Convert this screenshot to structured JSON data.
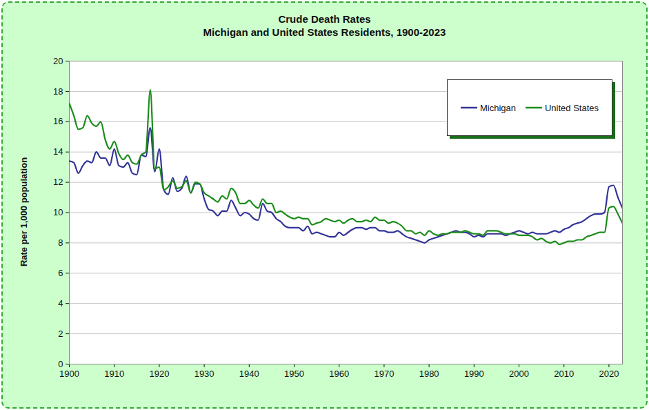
{
  "chart_data": {
    "type": "line",
    "title": "Crude Death Rates",
    "subtitle": "Michigan and United States Residents, 1900-2023",
    "y_label": "Rate per 1,000 population",
    "x": [
      1900,
      1901,
      1902,
      1903,
      1904,
      1905,
      1906,
      1907,
      1908,
      1909,
      1910,
      1911,
      1912,
      1913,
      1914,
      1915,
      1916,
      1917,
      1918,
      1919,
      1920,
      1921,
      1922,
      1923,
      1924,
      1925,
      1926,
      1927,
      1928,
      1929,
      1930,
      1931,
      1932,
      1933,
      1934,
      1935,
      1936,
      1937,
      1938,
      1939,
      1940,
      1941,
      1942,
      1943,
      1944,
      1945,
      1946,
      1947,
      1948,
      1949,
      1950,
      1951,
      1952,
      1953,
      1954,
      1955,
      1956,
      1957,
      1958,
      1959,
      1960,
      1961,
      1962,
      1963,
      1964,
      1965,
      1966,
      1967,
      1968,
      1969,
      1970,
      1971,
      1972,
      1973,
      1974,
      1975,
      1976,
      1977,
      1978,
      1979,
      1980,
      1981,
      1982,
      1983,
      1984,
      1985,
      1986,
      1987,
      1988,
      1989,
      1990,
      1991,
      1992,
      1993,
      1994,
      1995,
      1996,
      1997,
      1998,
      1999,
      2000,
      2001,
      2002,
      2003,
      2004,
      2005,
      2006,
      2007,
      2008,
      2009,
      2010,
      2011,
      2012,
      2013,
      2014,
      2015,
      2016,
      2017,
      2018,
      2019,
      2020,
      2021,
      2022,
      2023
    ],
    "series": [
      {
        "name": "Michigan",
        "color": "#333399",
        "values": [
          13.4,
          13.3,
          12.6,
          13.1,
          13.4,
          13.3,
          14.0,
          13.6,
          13.6,
          13.1,
          14.2,
          13.1,
          13.0,
          13.3,
          12.6,
          12.5,
          13.8,
          13.7,
          15.6,
          12.7,
          14.2,
          11.5,
          11.2,
          12.3,
          11.4,
          11.6,
          12.4,
          11.3,
          11.9,
          11.9,
          10.9,
          10.2,
          10.1,
          9.8,
          10.1,
          10.1,
          10.8,
          10.3,
          9.8,
          10.0,
          9.9,
          9.6,
          9.5,
          10.6,
          10.1,
          10.0,
          9.6,
          9.4,
          9.1,
          9.0,
          9.0,
          9.0,
          8.8,
          9.1,
          8.6,
          8.7,
          8.6,
          8.5,
          8.4,
          8.4,
          8.7,
          8.5,
          8.7,
          8.9,
          9.0,
          9.0,
          8.9,
          9.0,
          9.0,
          8.8,
          8.8,
          8.7,
          8.7,
          8.8,
          8.6,
          8.4,
          8.3,
          8.2,
          8.1,
          8.0,
          8.2,
          8.3,
          8.4,
          8.5,
          8.6,
          8.7,
          8.8,
          8.7,
          8.7,
          8.6,
          8.4,
          8.5,
          8.4,
          8.6,
          8.6,
          8.6,
          8.6,
          8.5,
          8.6,
          8.7,
          8.8,
          8.7,
          8.6,
          8.7,
          8.6,
          8.6,
          8.6,
          8.7,
          8.8,
          8.7,
          8.9,
          9.0,
          9.2,
          9.3,
          9.4,
          9.6,
          9.8,
          9.9,
          9.9,
          10.0,
          11.7,
          11.8,
          11.0,
          10.3
        ]
      },
      {
        "name": "United States",
        "color": "#1a8c1a",
        "values": [
          17.2,
          16.4,
          15.5,
          15.6,
          16.4,
          15.9,
          15.7,
          16.0,
          14.8,
          14.2,
          14.7,
          13.9,
          13.5,
          13.8,
          13.3,
          13.2,
          13.8,
          14.0,
          18.1,
          12.9,
          13.0,
          11.5,
          11.7,
          12.1,
          11.6,
          11.7,
          12.1,
          11.3,
          12.0,
          11.9,
          11.3,
          11.1,
          10.9,
          10.7,
          11.1,
          10.9,
          11.6,
          11.3,
          10.6,
          10.6,
          10.8,
          10.5,
          10.3,
          10.9,
          10.6,
          10.6,
          10.0,
          10.1,
          9.9,
          9.7,
          9.6,
          9.7,
          9.6,
          9.6,
          9.2,
          9.3,
          9.4,
          9.6,
          9.5,
          9.4,
          9.5,
          9.3,
          9.5,
          9.6,
          9.4,
          9.4,
          9.5,
          9.4,
          9.7,
          9.5,
          9.5,
          9.3,
          9.4,
          9.3,
          9.1,
          8.8,
          8.8,
          8.6,
          8.7,
          8.5,
          8.8,
          8.6,
          8.5,
          8.6,
          8.6,
          8.7,
          8.7,
          8.7,
          8.8,
          8.7,
          8.6,
          8.6,
          8.5,
          8.8,
          8.8,
          8.8,
          8.7,
          8.6,
          8.6,
          8.6,
          8.5,
          8.5,
          8.5,
          8.4,
          8.2,
          8.3,
          8.1,
          8.0,
          8.1,
          7.9,
          8.0,
          8.1,
          8.1,
          8.2,
          8.2,
          8.4,
          8.5,
          8.6,
          8.7,
          8.7,
          10.3,
          10.4,
          9.9,
          9.3
        ]
      }
    ],
    "xlim": [
      1900,
      2023
    ],
    "ylim": [
      0,
      20
    ],
    "xticks": [
      1900,
      1910,
      1920,
      1930,
      1940,
      1950,
      1960,
      1970,
      1980,
      1990,
      2000,
      2010,
      2020
    ],
    "yticks": [
      0,
      2,
      4,
      6,
      8,
      10,
      12,
      14,
      16,
      18,
      20
    ],
    "grid": true,
    "legend": "top-right"
  }
}
